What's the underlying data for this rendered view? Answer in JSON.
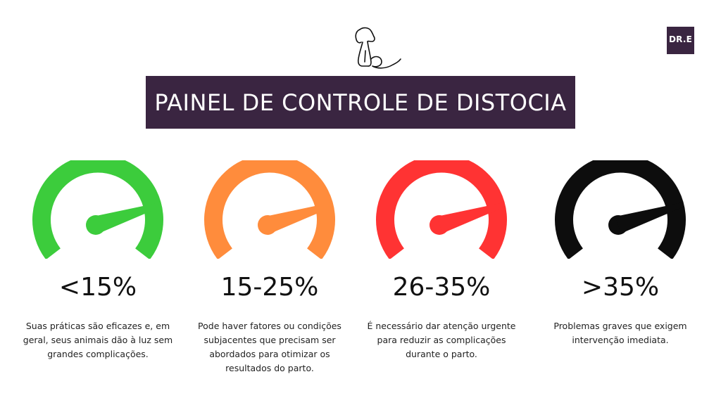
{
  "header": {
    "logo_text": "DR.E",
    "logo_subtext": "",
    "title": "PAINEL DE CONTROLE DE DISTOCIA"
  },
  "gauges": [
    {
      "label": "<15%",
      "description": "Suas práticas são eficazes e, em geral, seus animais dão à luz sem grandes complicações.",
      "color": "#3ccc3c"
    },
    {
      "label": "15-25%",
      "description": "Pode haver fatores ou condições subjacentes que precisam ser abordados para otimizar os resultados do parto.",
      "color": "#ff8c3c"
    },
    {
      "label": "26-35%",
      "description": "É necessário dar atenção urgente para reduzir as complicações durante o parto.",
      "color": "#ff3333"
    },
    {
      "label": ">35%",
      "description": "Problemas graves que exigem intervenção imediata.",
      "color": "#0d0d0d"
    }
  ]
}
